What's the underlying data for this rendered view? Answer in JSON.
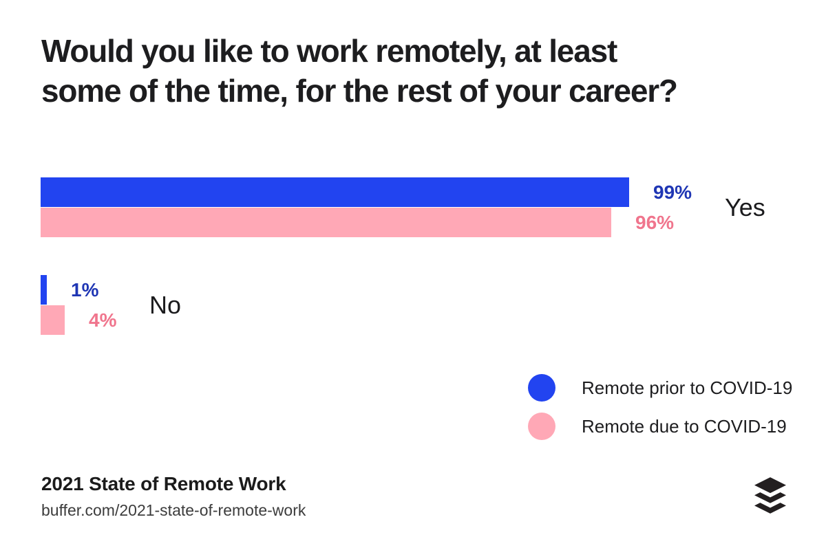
{
  "header": {
    "title": "Would you like to work remotely, at least\nsome of the time, for the rest of your career?"
  },
  "chart_data": {
    "type": "bar",
    "orientation": "horizontal",
    "title": "Would you like to work remotely, at least some of the time, for the rest of your career?",
    "categories": [
      "Yes",
      "No"
    ],
    "series": [
      {
        "name": "Remote prior to COVID-19",
        "color": "#2244F0",
        "label_color": "#1F36B4",
        "values": [
          99,
          1
        ]
      },
      {
        "name": "Remote due to COVID-19",
        "color": "#FFA8B6",
        "label_color": "#F0758D",
        "values": [
          96,
          4
        ]
      }
    ],
    "value_suffix": "%",
    "xlim": [
      0,
      100
    ],
    "grid": false,
    "axis_labels_shown": false,
    "legend_position": "bottom-right"
  },
  "footer": {
    "report_title": "2021 State of Remote Work",
    "url": "buffer.com/2021-state-of-remote-work"
  },
  "logo": {
    "name": "buffer-logo",
    "color": "#231F20"
  }
}
